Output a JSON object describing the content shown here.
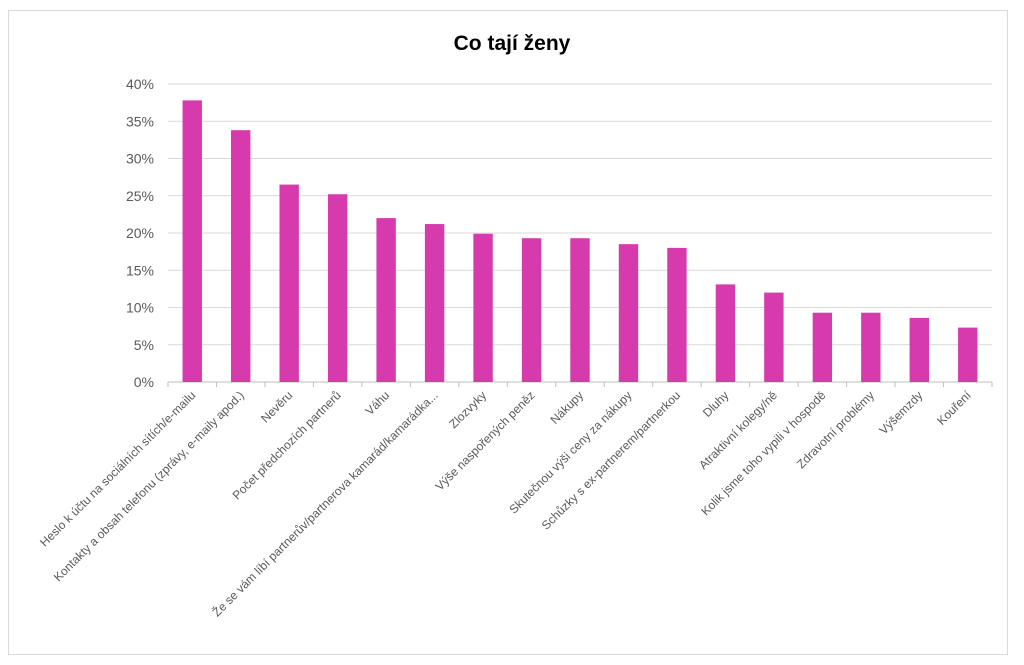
{
  "chart_data": {
    "type": "bar",
    "title": "Co tají ženy",
    "xlabel": "",
    "ylabel": "",
    "ylim": [
      0,
      40
    ],
    "y_ticks": [
      "0%",
      "5%",
      "10%",
      "15%",
      "20%",
      "25%",
      "30%",
      "35%",
      "40%"
    ],
    "grid": true,
    "legend": "none",
    "color": "#d63aad",
    "categories": [
      "Heslo k účtu na sociálních sítích/e-mailu",
      "Kontakty a obsah telefonu (zprávy, e-maily apod.)",
      "Nevěru",
      "Počet předchozích partnerů",
      "Váhu",
      "Že se vám líbí partnerův/partnerova kamarád/kamarádka...",
      "Zlozvyky",
      "Výše naspořených peněz",
      "Nákupy",
      "Skutečnou výši ceny za nákupy",
      "Schůzky s ex-partnerem/partnerkou",
      "Dluhy",
      "Atraktivní kolegy/ně",
      "Kolik jsme toho vypili v hospodě",
      "Zdravotní problémy",
      "Výšemzdy",
      "Kouření"
    ],
    "values": [
      37.8,
      33.8,
      26.5,
      25.2,
      22.0,
      21.2,
      19.9,
      19.3,
      19.3,
      18.5,
      18.0,
      13.1,
      12.0,
      9.3,
      9.3,
      8.6,
      7.3
    ]
  }
}
